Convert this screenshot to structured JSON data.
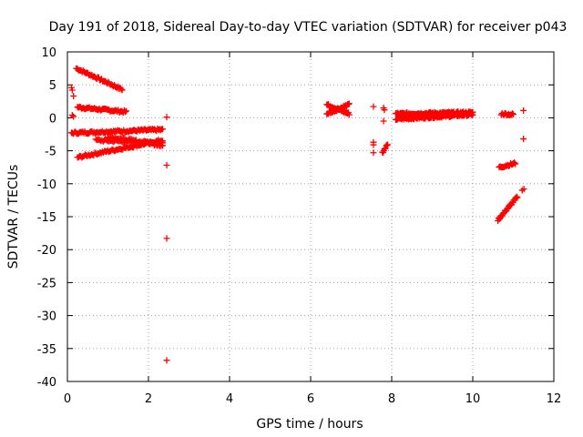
{
  "chart_data": {
    "type": "scatter",
    "title": "Day 191 of 2018, Sidereal Day-to-day VTEC variation (SDTVAR) for receiver p043",
    "xlabel": "GPS time / hours",
    "ylabel": "SDTVAR / TECUs",
    "xlim": [
      0,
      12
    ],
    "ylim": [
      -40,
      10
    ],
    "xticks": [
      "0",
      "2",
      "4",
      "6",
      "8",
      "10",
      "12"
    ],
    "yticks": [
      "10",
      "5",
      "0",
      "-5",
      "-10",
      "-15",
      "-20",
      "-25",
      "-30",
      "-35",
      "-40"
    ],
    "grid": true,
    "marker": "+",
    "color": "#ff0000",
    "segments": [
      {
        "x0": 0.22,
        "x1": 1.35,
        "y0": 7.5,
        "y1": 4.3,
        "n": 48
      },
      {
        "x0": 0.25,
        "x1": 1.45,
        "y0": 1.6,
        "y1": 0.9,
        "n": 50
      },
      {
        "x0": 0.1,
        "x1": 2.35,
        "y0": -2.3,
        "y1": -1.8,
        "n": 90
      },
      {
        "x0": 0.25,
        "x1": 2.35,
        "y0": -6.0,
        "y1": -3.4,
        "n": 80
      },
      {
        "x0": 0.7,
        "x1": 2.35,
        "y0": -3.4,
        "y1": -3.8,
        "n": 55
      },
      {
        "x0": 1.0,
        "x1": 2.35,
        "y0": -2.8,
        "y1": -4.2,
        "n": 40
      },
      {
        "x0": 6.4,
        "x1": 6.95,
        "y0": 2.0,
        "y1": 0.6,
        "n": 30
      },
      {
        "x0": 6.4,
        "x1": 6.95,
        "y0": 0.6,
        "y1": 2.0,
        "n": 30
      },
      {
        "x0": 8.1,
        "x1": 10.0,
        "y0": -0.2,
        "y1": 0.5,
        "n": 90
      },
      {
        "x0": 8.1,
        "x1": 10.0,
        "y0": 0.6,
        "y1": 0.8,
        "n": 90
      },
      {
        "x0": 10.7,
        "x1": 11.0,
        "y0": 0.6,
        "y1": 0.5,
        "n": 14
      },
      {
        "x0": 10.65,
        "x1": 11.05,
        "y0": -7.5,
        "y1": -6.9,
        "n": 18
      },
      {
        "x0": 10.62,
        "x1": 11.1,
        "y0": -15.5,
        "y1": -12.0,
        "n": 28
      },
      {
        "x0": 7.77,
        "x1": 7.9,
        "y0": -5.3,
        "y1": -4.0,
        "n": 8
      }
    ],
    "points": [
      [
        0.1,
        4.6
      ],
      [
        0.12,
        4.2
      ],
      [
        0.15,
        3.3
      ],
      [
        0.12,
        0.4
      ],
      [
        0.15,
        0.2
      ],
      [
        2.45,
        0.1
      ],
      [
        2.45,
        -7.2
      ],
      [
        2.45,
        -18.3
      ],
      [
        2.45,
        -36.8
      ],
      [
        7.55,
        1.7
      ],
      [
        7.55,
        -3.7
      ],
      [
        7.55,
        -4.1
      ],
      [
        7.55,
        -5.3
      ],
      [
        7.8,
        1.5
      ],
      [
        7.82,
        1.2
      ],
      [
        7.8,
        -0.5
      ],
      [
        11.25,
        1.1
      ],
      [
        11.25,
        -3.2
      ],
      [
        11.22,
        -11.0
      ],
      [
        11.26,
        -10.8
      ]
    ]
  }
}
